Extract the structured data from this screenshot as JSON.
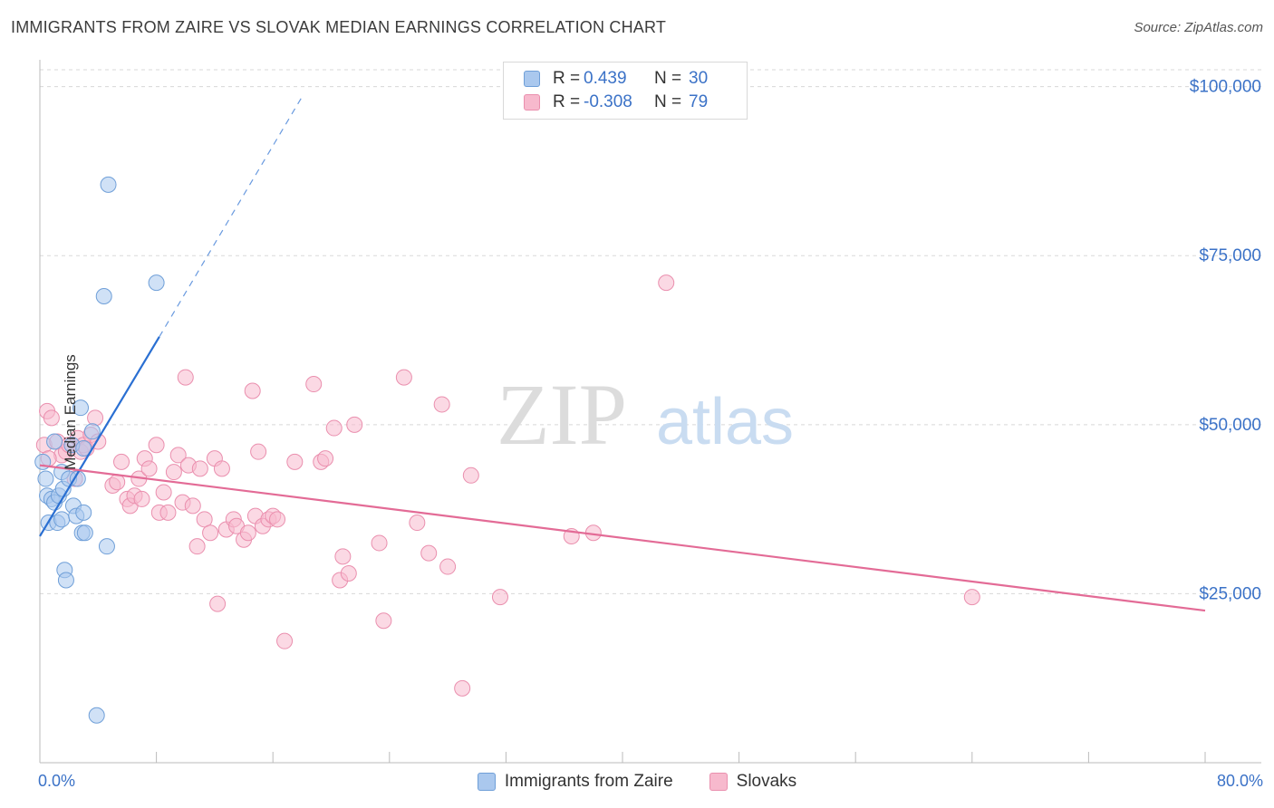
{
  "title": "IMMIGRANTS FROM ZAIRE VS SLOVAK MEDIAN EARNINGS CORRELATION CHART",
  "source": "Source: ZipAtlas.com",
  "watermark": {
    "zip": "ZIP",
    "atlas": "atlas"
  },
  "legend": {
    "r_label": "R =",
    "n_label": "N =",
    "zaire": {
      "r": "0.439",
      "n": "30"
    },
    "slovaks": {
      "r": "-0.308",
      "n": "79"
    }
  },
  "bottom_legend": {
    "zaire": "Immigrants from Zaire",
    "slovaks": "Slovaks"
  },
  "colors": {
    "zaire_fill": "#aac8ee",
    "zaire_stroke": "#6f9fd8",
    "zaire_line": "#2a6fd2",
    "slovak_fill": "#f7b9cd",
    "slovak_stroke": "#ea8fae",
    "slovak_line": "#e36b96",
    "tick_text": "#3b72c7",
    "grid": "#d8d8d8"
  },
  "chart_data": {
    "type": "scatter",
    "title": "IMMIGRANTS FROM ZAIRE VS SLOVAK MEDIAN EARNINGS CORRELATION CHART",
    "xlabel": "",
    "ylabel": "Median Earnings",
    "xlim": [
      0,
      80
    ],
    "ylim": [
      0,
      102500
    ],
    "x_tick_labels": [
      "0.0%",
      "80.0%"
    ],
    "y_ticks": [
      {
        "value": 25000,
        "label": "$25,000"
      },
      {
        "value": 50000,
        "label": "$50,000"
      },
      {
        "value": 75000,
        "label": "$75,000"
      },
      {
        "value": 100000,
        "label": "$100,000"
      }
    ],
    "series": [
      {
        "name": "Immigrants from Zaire",
        "r": 0.439,
        "n": 30,
        "trend": {
          "x1": 0,
          "y1": 33500,
          "x2": 8.2,
          "y2": 63000,
          "dash_to_x": 18.0,
          "dash_to_y": 98500
        },
        "points": [
          [
            0.2,
            44500
          ],
          [
            0.4,
            42000
          ],
          [
            0.5,
            39500
          ],
          [
            0.6,
            35500
          ],
          [
            0.8,
            39000
          ],
          [
            1.0,
            38500
          ],
          [
            1.2,
            35500
          ],
          [
            1.3,
            39500
          ],
          [
            1.5,
            36000
          ],
          [
            1.5,
            43000
          ],
          [
            1.6,
            40500
          ],
          [
            1.7,
            28500
          ],
          [
            1.8,
            27000
          ],
          [
            2.0,
            42000
          ],
          [
            2.2,
            47000
          ],
          [
            2.3,
            38000
          ],
          [
            2.5,
            36500
          ],
          [
            2.6,
            42000
          ],
          [
            2.8,
            52500
          ],
          [
            2.9,
            34000
          ],
          [
            3.0,
            46500
          ],
          [
            3.0,
            37000
          ],
          [
            3.1,
            34000
          ],
          [
            3.6,
            49000
          ],
          [
            3.9,
            7000
          ],
          [
            4.4,
            69000
          ],
          [
            4.7,
            85500
          ],
          [
            4.6,
            32000
          ],
          [
            8.0,
            71000
          ],
          [
            1.0,
            47500
          ]
        ]
      },
      {
        "name": "Slovaks",
        "r": -0.308,
        "n": 79,
        "trend": {
          "x1": 0,
          "y1": 44000,
          "x2": 80,
          "y2": 22500
        },
        "points": [
          [
            0.3,
            47000
          ],
          [
            0.5,
            52000
          ],
          [
            0.8,
            51000
          ],
          [
            1.2,
            47500
          ],
          [
            1.5,
            45500
          ],
          [
            1.8,
            46000
          ],
          [
            2.0,
            47000
          ],
          [
            2.4,
            42000
          ],
          [
            2.6,
            48000
          ],
          [
            2.8,
            46000
          ],
          [
            3.0,
            47000
          ],
          [
            3.2,
            46500
          ],
          [
            3.5,
            48500
          ],
          [
            3.8,
            51000
          ],
          [
            4.0,
            47500
          ],
          [
            5.0,
            41000
          ],
          [
            5.3,
            41500
          ],
          [
            5.6,
            44500
          ],
          [
            6.0,
            39000
          ],
          [
            6.2,
            38000
          ],
          [
            6.5,
            39500
          ],
          [
            6.8,
            42000
          ],
          [
            7.0,
            39000
          ],
          [
            7.2,
            45000
          ],
          [
            7.5,
            43500
          ],
          [
            8.0,
            47000
          ],
          [
            8.2,
            37000
          ],
          [
            8.5,
            40000
          ],
          [
            8.8,
            37000
          ],
          [
            9.2,
            43000
          ],
          [
            9.5,
            45500
          ],
          [
            9.8,
            38500
          ],
          [
            10.0,
            57000
          ],
          [
            10.2,
            44000
          ],
          [
            10.5,
            38000
          ],
          [
            10.8,
            32000
          ],
          [
            11.0,
            43500
          ],
          [
            11.3,
            36000
          ],
          [
            11.7,
            34000
          ],
          [
            12.0,
            45000
          ],
          [
            12.2,
            23500
          ],
          [
            12.5,
            43500
          ],
          [
            12.8,
            34500
          ],
          [
            13.3,
            36000
          ],
          [
            13.5,
            35000
          ],
          [
            14.0,
            33000
          ],
          [
            14.3,
            34000
          ],
          [
            14.6,
            55000
          ],
          [
            14.8,
            36500
          ],
          [
            15.0,
            46000
          ],
          [
            15.3,
            35000
          ],
          [
            15.7,
            36000
          ],
          [
            16.0,
            36500
          ],
          [
            16.3,
            36000
          ],
          [
            16.8,
            18000
          ],
          [
            17.5,
            44500
          ],
          [
            18.8,
            56000
          ],
          [
            19.3,
            44500
          ],
          [
            19.6,
            45000
          ],
          [
            20.2,
            49500
          ],
          [
            20.6,
            27000
          ],
          [
            20.8,
            30500
          ],
          [
            21.2,
            28000
          ],
          [
            21.6,
            50000
          ],
          [
            23.3,
            32500
          ],
          [
            23.6,
            21000
          ],
          [
            25.0,
            57000
          ],
          [
            25.9,
            35500
          ],
          [
            26.7,
            31000
          ],
          [
            27.6,
            53000
          ],
          [
            28.0,
            29000
          ],
          [
            29.0,
            11000
          ],
          [
            29.6,
            42500
          ],
          [
            31.6,
            24500
          ],
          [
            36.5,
            33500
          ],
          [
            38.0,
            34000
          ],
          [
            43.0,
            71000
          ],
          [
            64.0,
            24500
          ],
          [
            0.6,
            45000
          ]
        ]
      }
    ]
  }
}
